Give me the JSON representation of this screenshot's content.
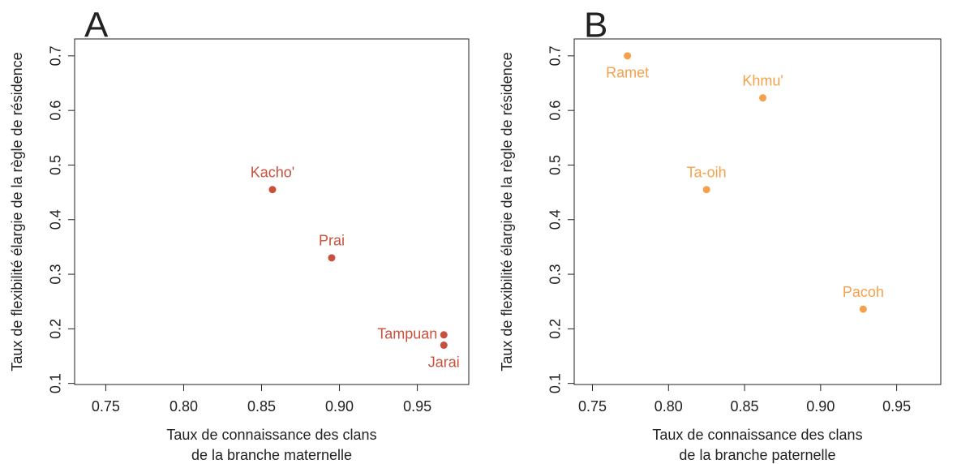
{
  "chart_data": [
    {
      "type": "scatter",
      "panel": "A",
      "color": "#c9503c",
      "ylabel": "Taux de flexibilité élargie de la règle de résidence",
      "xlabel": [
        "Taux de connaissance des clans",
        "de la branche maternelle"
      ],
      "labels": [
        "Kacho'",
        "Prai",
        "Tampuan",
        "Jarai"
      ],
      "x": [
        0.857,
        0.895,
        0.967,
        0.967
      ],
      "values": [
        0.455,
        0.33,
        0.189,
        0.17
      ],
      "xlim": [
        0.73,
        0.983
      ],
      "ylim": [
        0.098,
        0.731
      ],
      "xticks": [
        0.75,
        {
          "value": 0.8,
          "label": "0.80"
        },
        0.85,
        {
          "value": 0.9,
          "label": "0.90"
        },
        0.95
      ],
      "yticks": [
        0.1,
        0.2,
        0.3,
        0.4,
        0.5,
        0.6,
        0.7
      ]
    },
    {
      "type": "scatter",
      "panel": "B",
      "color": "#f5a14a",
      "ylabel": "Taux de flexibilité élargie de la règle de résidence",
      "xlabel": [
        "Taux de connaissance des clans",
        "de la branche paternelle"
      ],
      "labels": [
        "Ramet",
        "Khmu'",
        "Ta-oih",
        "Pacoh"
      ],
      "x": [
        0.773,
        0.862,
        0.825,
        0.928
      ],
      "values": [
        0.7,
        0.623,
        0.455,
        0.236
      ],
      "xlim": [
        0.738,
        0.979
      ],
      "ylim": [
        0.098,
        0.731
      ],
      "xticks": [
        0.75,
        {
          "value": 0.8,
          "label": "0.80"
        },
        0.85,
        {
          "value": 0.9,
          "label": "0.90"
        },
        0.95
      ],
      "yticks": [
        0.1,
        0.2,
        0.3,
        0.4,
        0.5,
        0.6,
        0.7
      ]
    }
  ]
}
